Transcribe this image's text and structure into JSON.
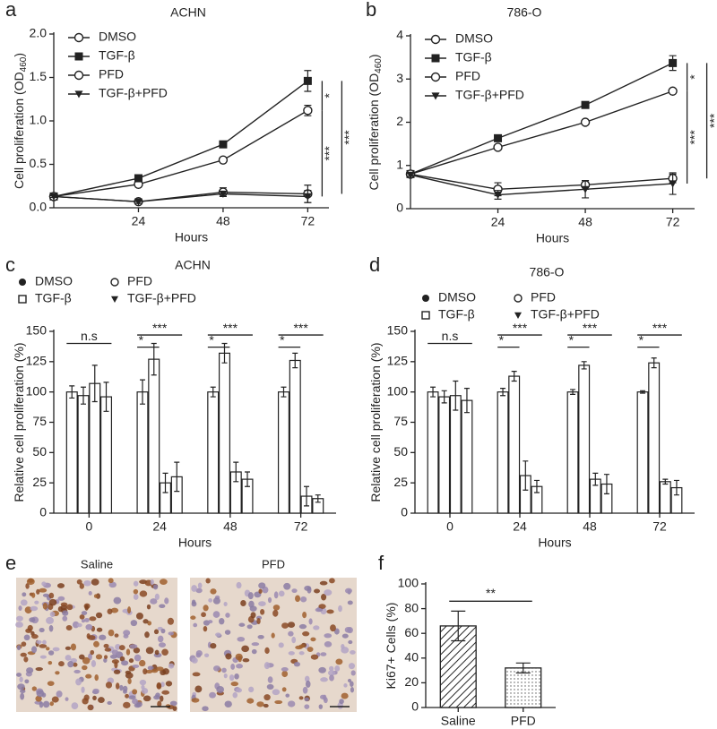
{
  "chart_data": [
    {
      "panel": "a",
      "type": "line",
      "title": "ACHN",
      "x_label": "Hours",
      "y_label": "Cell proliferation (OD",
      "y_label_sub": "460",
      "y_label_end": ")",
      "x": [
        0,
        24,
        48,
        72
      ],
      "xlim": [
        0,
        78
      ],
      "xticks": [
        24,
        48,
        72
      ],
      "ylim": [
        0,
        2
      ],
      "yticks": [
        {
          "value": 0,
          "label": "0.0"
        },
        {
          "value": 0.5,
          "label": "0.5"
        },
        {
          "value": 1,
          "label": "1.0"
        },
        {
          "value": 1.5,
          "label": "1.5"
        },
        {
          "value": 2,
          "label": "2.0"
        }
      ],
      "series": [
        {
          "name": "DMSO",
          "marker": "open-circle",
          "color": "#222222",
          "values": [
            0.13,
            0.27,
            0.55,
            1.12
          ],
          "errors": [
            0.01,
            0.02,
            0.02,
            0.06
          ]
        },
        {
          "name": "TGF-β",
          "marker": "filled-square",
          "color": "#222222",
          "values": [
            0.13,
            0.34,
            0.73,
            1.46
          ],
          "errors": [
            0.01,
            0.02,
            0.03,
            0.12
          ]
        },
        {
          "name": "PFD",
          "marker": "open-circle",
          "color": "#222222",
          "values": [
            0.13,
            0.07,
            0.18,
            0.16
          ],
          "errors": [
            0.01,
            0.02,
            0.05,
            0.1
          ]
        },
        {
          "name": "TGF-β+PFD",
          "marker": "filled-triangle",
          "color": "#222222",
          "values": [
            0.13,
            0.07,
            0.16,
            0.13
          ],
          "errors": [
            0.01,
            0.02,
            0.03,
            0.07
          ]
        }
      ],
      "annotations": [
        "*",
        "***",
        "***"
      ]
    },
    {
      "panel": "b",
      "type": "line",
      "title": "786-O",
      "x_label": "Hours",
      "y_label": "Cell proliferation (OD",
      "y_label_sub": "460",
      "y_label_end": ")",
      "x": [
        0,
        24,
        48,
        72
      ],
      "xlim": [
        0,
        78
      ],
      "xticks": [
        24,
        48,
        72
      ],
      "ylim": [
        0,
        4
      ],
      "yticks": [
        0,
        1,
        2,
        3,
        4
      ],
      "series": [
        {
          "name": "DMSO",
          "marker": "open-circle",
          "color": "#222222",
          "values": [
            0.8,
            1.42,
            2.0,
            2.72
          ],
          "errors": [
            0.03,
            0.05,
            0.04,
            0.05
          ]
        },
        {
          "name": "TGF-β",
          "marker": "filled-square",
          "color": "#222222",
          "values": [
            0.8,
            1.63,
            2.4,
            3.37
          ],
          "errors": [
            0.03,
            0.06,
            0.05,
            0.17
          ]
        },
        {
          "name": "PFD",
          "marker": "open-circle",
          "color": "#222222",
          "values": [
            0.8,
            0.45,
            0.55,
            0.7
          ],
          "errors": [
            0.03,
            0.15,
            0.1,
            0.1
          ]
        },
        {
          "name": "TGF-β+PFD",
          "marker": "filled-triangle",
          "color": "#222222",
          "values": [
            0.78,
            0.32,
            0.45,
            0.58
          ],
          "errors": [
            0.03,
            0.1,
            0.2,
            0.25
          ]
        }
      ],
      "annotations": [
        "*",
        "***",
        "***"
      ]
    },
    {
      "panel": "c",
      "type": "bar",
      "title": "ACHN",
      "x_label": "Hours",
      "y_label": "Relative cell proliferation (%)",
      "categories": [
        "0",
        "24",
        "48",
        "72"
      ],
      "ylim": [
        0,
        150
      ],
      "yticks": [
        0,
        25,
        50,
        75,
        100,
        125,
        150
      ],
      "series": [
        {
          "name": "DMSO",
          "marker": "filled-circle",
          "color": "#ffffff",
          "values": [
            100,
            100,
            100,
            100
          ],
          "errors": [
            5,
            10,
            4,
            4
          ]
        },
        {
          "name": "TGF-β",
          "marker": "open-square",
          "color": "#ffffff",
          "values": [
            97,
            127,
            132,
            126
          ],
          "errors": [
            7,
            13,
            8,
            6
          ]
        },
        {
          "name": "PFD",
          "marker": "open-circle",
          "color": "#ffffff",
          "values": [
            107,
            25,
            34,
            14
          ],
          "errors": [
            15,
            8,
            8,
            8
          ]
        },
        {
          "name": "TGF-β+PFD",
          "marker": "filled-triangle",
          "color": "#ffffff",
          "values": [
            96,
            30,
            28,
            12
          ],
          "errors": [
            12,
            12,
            6,
            3
          ]
        }
      ],
      "annotations": [
        "n.s",
        "*",
        "***",
        "*",
        "***",
        "*",
        "***"
      ]
    },
    {
      "panel": "d",
      "type": "bar",
      "title": "786-O",
      "x_label": "Hours",
      "y_label": "Relative cell proliferation (%)",
      "categories": [
        "0",
        "24",
        "48",
        "72"
      ],
      "ylim": [
        0,
        150
      ],
      "yticks": [
        0,
        25,
        50,
        75,
        100,
        125,
        150
      ],
      "series": [
        {
          "name": "DMSO",
          "marker": "filled-circle",
          "color": "#ffffff",
          "values": [
            100,
            100,
            100,
            100
          ],
          "errors": [
            4,
            3,
            2,
            1
          ]
        },
        {
          "name": "TGF-β",
          "marker": "open-square",
          "color": "#ffffff",
          "values": [
            96,
            113,
            122,
            124
          ],
          "errors": [
            5,
            4,
            3,
            4
          ]
        },
        {
          "name": "PFD",
          "marker": "open-circle",
          "color": "#ffffff",
          "values": [
            97,
            31,
            28,
            26
          ],
          "errors": [
            12,
            12,
            5,
            2
          ]
        },
        {
          "name": "TGF-β+PFD",
          "marker": "filled-triangle",
          "color": "#ffffff",
          "values": [
            93,
            22,
            24,
            21
          ],
          "errors": [
            10,
            5,
            8,
            6
          ]
        }
      ],
      "annotations": [
        "n.s",
        "*",
        "***",
        "*",
        "***",
        "*",
        "***"
      ]
    },
    {
      "panel": "e",
      "type": "image",
      "labels": [
        "Saline",
        "PFD"
      ]
    },
    {
      "panel": "f",
      "type": "bar",
      "y_label": "Ki67+ Cells (%)",
      "categories": [
        "Saline",
        "PFD"
      ],
      "values": [
        66,
        32
      ],
      "errors": [
        12,
        4
      ],
      "ylim": [
        0,
        100
      ],
      "yticks": [
        0,
        20,
        40,
        60,
        80,
        100
      ],
      "patterns": [
        "hatch",
        "dots"
      ],
      "annotations": [
        "**"
      ]
    }
  ]
}
